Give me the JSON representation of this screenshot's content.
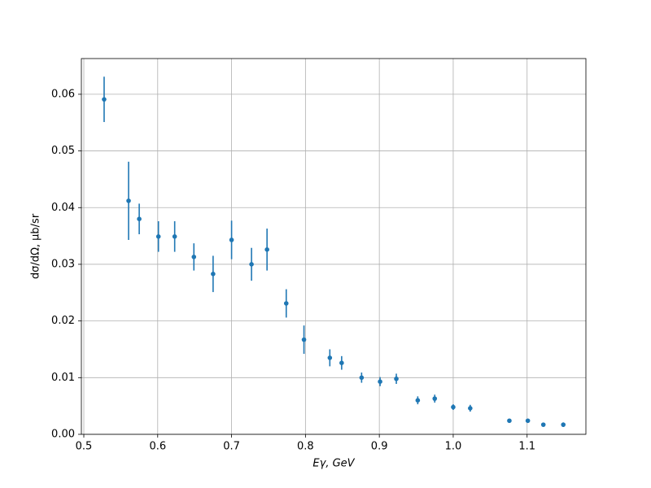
{
  "chart_data": {
    "type": "errorbar",
    "xlabel": "Eγ, GeV",
    "ylabel": "dσ/dΩ, μb/sr",
    "x": [
      0.5275,
      0.5606,
      0.575,
      0.601,
      0.623,
      0.649,
      0.675,
      0.7,
      0.727,
      0.748,
      0.774,
      0.798,
      0.833,
      0.849,
      0.876,
      0.901,
      0.923,
      0.952,
      0.975,
      1.0,
      1.023,
      1.076,
      1.101,
      1.122,
      1.149
    ],
    "values": [
      0.0591,
      0.0412,
      0.038,
      0.0349,
      0.0349,
      0.0313,
      0.0283,
      0.0343,
      0.03,
      0.0326,
      0.0231,
      0.0167,
      0.0135,
      0.0126,
      0.01,
      0.0093,
      0.0098,
      0.006,
      0.0063,
      0.0048,
      0.0046,
      0.0024,
      0.0024,
      0.0017,
      0.0017
    ],
    "errors": [
      0.004,
      0.0069,
      0.0027,
      0.0027,
      0.0027,
      0.0024,
      0.0032,
      0.0034,
      0.0029,
      0.0037,
      0.0025,
      0.0025,
      0.0015,
      0.0012,
      0.0009,
      0.0008,
      0.0009,
      0.0007,
      0.0007,
      0.0005,
      0.0006,
      0.0003,
      0.0003,
      0.0003,
      0.0004
    ],
    "color": "#1f77b4",
    "xlim": [
      0.4967,
      1.1796
    ],
    "ylim": [
      0,
      0.0663
    ],
    "xticks": [
      0.5,
      0.6,
      0.7,
      0.8,
      0.9,
      {
        "value": 1.0,
        "label": "1.0"
      },
      1.1
    ],
    "yticks": [
      {
        "value": 0,
        "label": "0.00"
      },
      {
        "value": 0.01,
        "label": "0.01"
      },
      {
        "value": 0.02,
        "label": "0.02"
      },
      {
        "value": 0.03,
        "label": "0.03"
      },
      {
        "value": 0.04,
        "label": "0.04"
      },
      {
        "value": 0.05,
        "label": "0.05"
      },
      {
        "value": 0.06,
        "label": "0.06"
      }
    ],
    "grid": true
  }
}
